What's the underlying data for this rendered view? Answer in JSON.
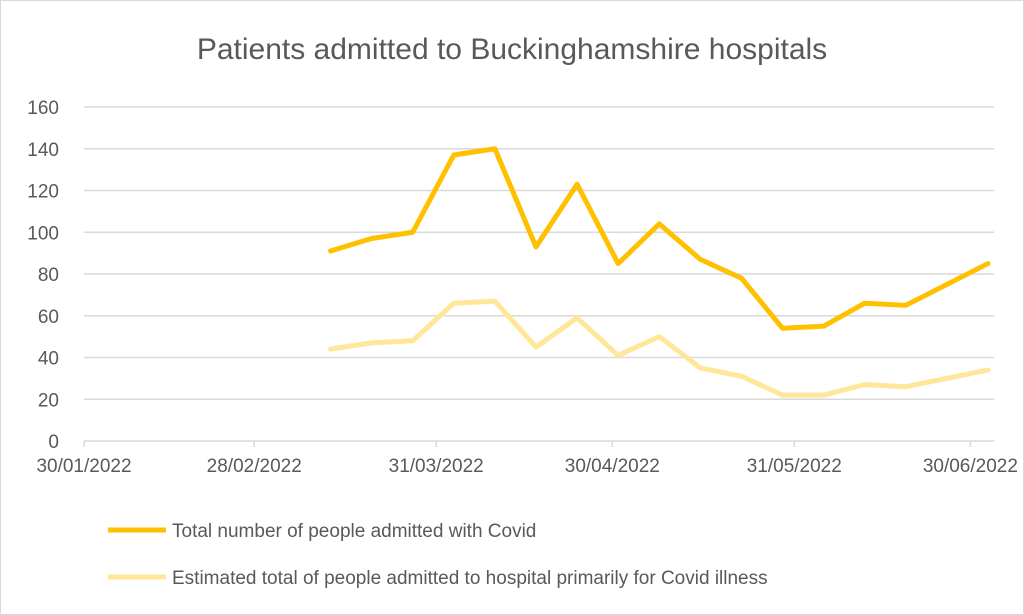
{
  "chart_data": {
    "type": "line",
    "title": "Patients admitted to Buckinghamshire hospitals",
    "xlabel": "",
    "ylabel": "",
    "ylim": [
      0,
      160
    ],
    "yticks": [
      0,
      20,
      40,
      60,
      80,
      100,
      120,
      140,
      160
    ],
    "xlim": [
      "30/01/2022",
      "04/07/2022"
    ],
    "xtick_labels": [
      "30/01/2022",
      "28/02/2022",
      "31/03/2022",
      "30/04/2022",
      "31/05/2022",
      "30/06/2022"
    ],
    "xtick_days": [
      0,
      29,
      60,
      90,
      121,
      151
    ],
    "grid": true,
    "legend_position": "bottom",
    "x": [
      "13/03/2022",
      "20/03/2022",
      "27/03/2022",
      "03/04/2022",
      "10/04/2022",
      "17/04/2022",
      "24/04/2022",
      "01/05/2022",
      "08/05/2022",
      "15/05/2022",
      "22/05/2022",
      "29/05/2022",
      "05/06/2022",
      "12/06/2022",
      "19/06/2022",
      "26/06/2022",
      "03/07/2022"
    ],
    "x_days": [
      42,
      49,
      56,
      63,
      70,
      77,
      84,
      91,
      98,
      105,
      112,
      119,
      126,
      133,
      140,
      147,
      154
    ],
    "series": [
      {
        "name": "Total number of people admitted with Covid",
        "color": "#FFC000",
        "values": [
          91,
          97,
          100,
          137,
          140,
          93,
          123,
          85,
          104,
          87,
          78,
          54,
          55,
          66,
          65,
          75,
          85
        ]
      },
      {
        "name": "Estimated total of people admitted to hospital primarily for Covid illness",
        "color": "#FFE699",
        "values": [
          44,
          47,
          48,
          66,
          67,
          45,
          59,
          41,
          50,
          35,
          31,
          22,
          22,
          27,
          26,
          30,
          34
        ]
      }
    ]
  }
}
